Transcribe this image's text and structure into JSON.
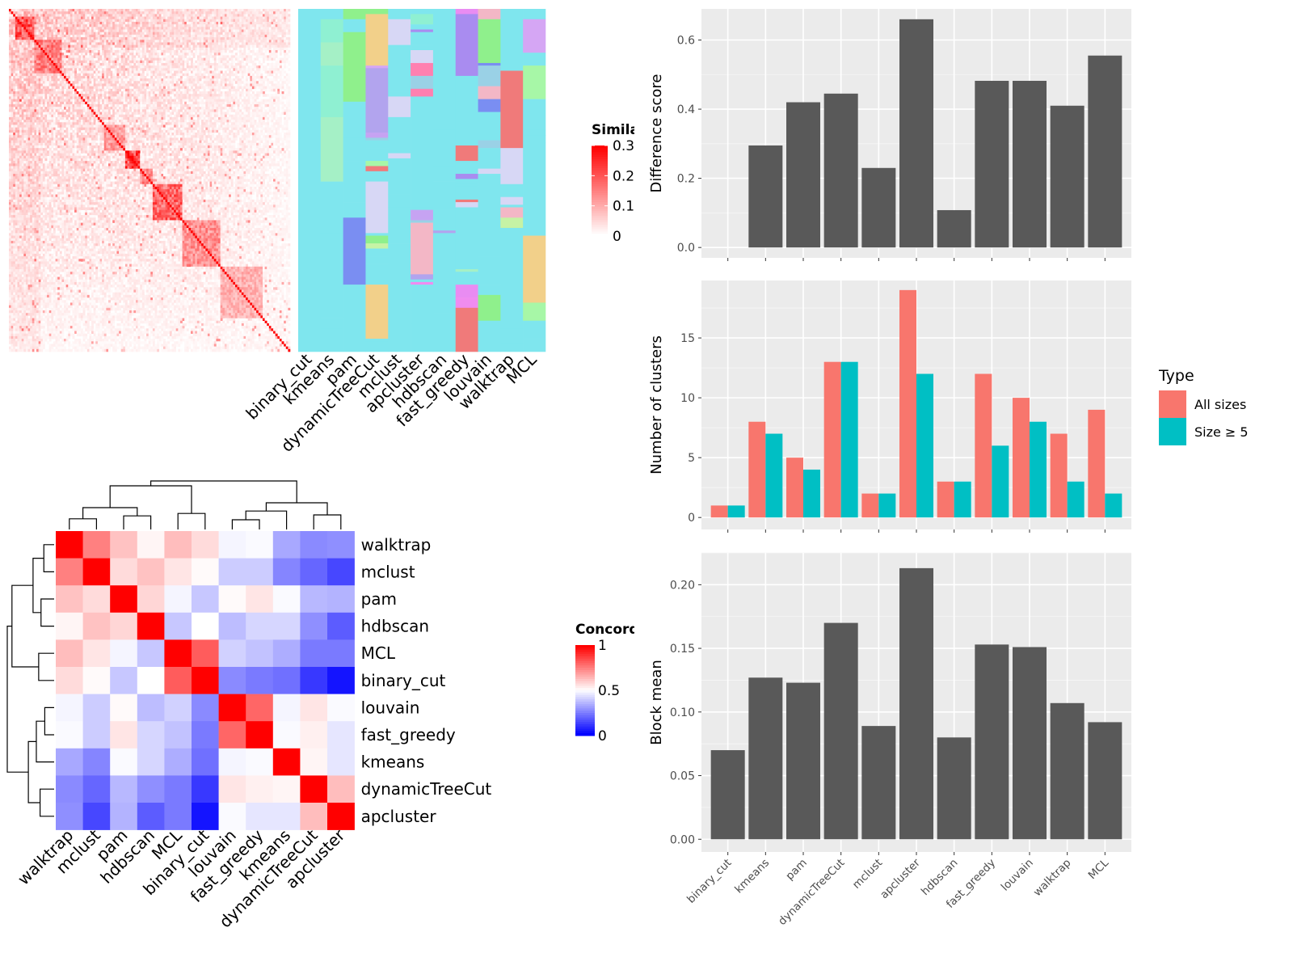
{
  "chart_data": [
    {
      "type": "heatmap",
      "panel": "similarity-heatmap",
      "legend": {
        "title": "Similarity",
        "ticks": [
          0,
          0.1,
          0.2,
          0.3
        ],
        "colors": [
          "#ffffff",
          "#ff0000"
        ]
      },
      "n_terms": 133,
      "color_scale": [
        0,
        0.3
      ],
      "diagonal_blocks": [
        {
          "start": 3,
          "end": 12,
          "value": 0.2
        },
        {
          "start": 12,
          "end": 25,
          "value": 0.15
        },
        {
          "start": 45,
          "end": 55,
          "value": 0.12
        },
        {
          "start": 55,
          "end": 62,
          "value": 0.22
        },
        {
          "start": 62,
          "end": 68,
          "value": 0.14
        },
        {
          "start": 68,
          "end": 82,
          "value": 0.18
        },
        {
          "start": 82,
          "end": 100,
          "value": 0.13
        },
        {
          "start": 100,
          "end": 120,
          "value": 0.09
        }
      ]
    },
    {
      "type": "heatmap",
      "panel": "cluster-assignments",
      "methods": [
        "binary_cut",
        "kmeans",
        "pam",
        "dynamicTreeCut",
        "mclust",
        "apcluster",
        "hdbscan",
        "fast_greedy",
        "louvain",
        "walktrap",
        "MCL"
      ],
      "n_terms": 133,
      "cluster_counts": [
        1,
        8,
        5,
        13,
        2,
        19,
        3,
        12,
        10,
        7,
        9
      ],
      "palette": [
        "#7fe6ee",
        "#b2a4ee",
        "#c6a3f2",
        "#a98cf0",
        "#e98cf2",
        "#a5f0c6",
        "#8ff0d2",
        "#7a8ef2",
        "#f08cf0",
        "#f3b7c6",
        "#8ff08c",
        "#c6f3a5",
        "#f07a7a",
        "#d7d7f5",
        "#9ad1e6",
        "#f2d08a",
        "#d5a6f4",
        "#a7f7a7",
        "#ff80b0"
      ]
    },
    {
      "type": "heatmap",
      "panel": "concordance-heatmap",
      "legend": {
        "title": "Concordance",
        "ticks": [
          0,
          0.5,
          1
        ],
        "colors": [
          "#0000ff",
          "#ffffff",
          "#ff0000"
        ]
      },
      "labels": [
        "walktrap",
        "mclust",
        "pam",
        "hdbscan",
        "MCL",
        "binary_cut",
        "louvain",
        "fast_greedy",
        "kmeans",
        "dynamicTreeCut",
        "apcluster"
      ],
      "values": [
        [
          1.0,
          0.75,
          0.62,
          0.52,
          0.63,
          0.57,
          0.48,
          0.49,
          0.33,
          0.27,
          0.28
        ],
        [
          0.75,
          1.0,
          0.57,
          0.62,
          0.55,
          0.51,
          0.4,
          0.4,
          0.26,
          0.2,
          0.14
        ],
        [
          0.62,
          0.57,
          1.0,
          0.58,
          0.48,
          0.39,
          0.51,
          0.55,
          0.49,
          0.36,
          0.35
        ],
        [
          0.52,
          0.62,
          0.58,
          1.0,
          0.39,
          0.5,
          0.37,
          0.42,
          0.42,
          0.28,
          0.18
        ],
        [
          0.63,
          0.55,
          0.48,
          0.39,
          1.0,
          0.82,
          0.41,
          0.38,
          0.34,
          0.24,
          0.24
        ],
        [
          0.57,
          0.51,
          0.39,
          0.5,
          0.82,
          1.0,
          0.27,
          0.24,
          0.22,
          0.11,
          0.04
        ],
        [
          0.48,
          0.4,
          0.51,
          0.37,
          0.41,
          0.27,
          1.0,
          0.8,
          0.48,
          0.55,
          0.49
        ],
        [
          0.49,
          0.4,
          0.55,
          0.42,
          0.38,
          0.24,
          0.8,
          1.0,
          0.49,
          0.53,
          0.45
        ],
        [
          0.33,
          0.26,
          0.49,
          0.42,
          0.34,
          0.22,
          0.48,
          0.49,
          1.0,
          0.52,
          0.45
        ],
        [
          0.27,
          0.2,
          0.36,
          0.28,
          0.24,
          0.11,
          0.55,
          0.53,
          0.52,
          1.0,
          0.63
        ],
        [
          0.28,
          0.14,
          0.35,
          0.18,
          0.24,
          0.04,
          0.49,
          0.45,
          0.45,
          0.63,
          1.0
        ]
      ]
    },
    {
      "type": "bar",
      "panel": "difference-score",
      "ylabel": "Difference score",
      "categories": [
        "binary_cut",
        "kmeans",
        "pam",
        "dynamicTreeCut",
        "mclust",
        "apcluster",
        "hdbscan",
        "fast_greedy",
        "louvain",
        "walktrap",
        "MCL"
      ],
      "values": [
        0,
        0.295,
        0.42,
        0.445,
        0.23,
        0.66,
        0.108,
        0.482,
        0.482,
        0.41,
        0.555
      ],
      "ylim": [
        -0.03,
        0.69
      ],
      "yticks": [
        0.0,
        0.2,
        0.4,
        0.6
      ],
      "ytick_labels": [
        "0.0",
        "0.2",
        "0.4",
        "0.6"
      ],
      "bar_color": "#595959"
    },
    {
      "type": "bar",
      "panel": "number-of-clusters",
      "ylabel": "Number of clusters",
      "categories": [
        "binary_cut",
        "kmeans",
        "pam",
        "dynamicTreeCut",
        "mclust",
        "apcluster",
        "hdbscan",
        "fast_greedy",
        "louvain",
        "walktrap",
        "MCL"
      ],
      "series": [
        {
          "name": "All sizes",
          "color": "#f8766d",
          "values": [
            1,
            8,
            5,
            13,
            2,
            19,
            3,
            12,
            10,
            7,
            9
          ]
        },
        {
          "name": "Size ≥ 5",
          "color": "#00bfc4",
          "values": [
            1,
            7,
            4,
            13,
            2,
            12,
            3,
            6,
            8,
            3,
            2
          ]
        }
      ],
      "ylim": [
        -1,
        19.8
      ],
      "yticks": [
        0,
        5,
        10,
        15
      ],
      "ytick_labels": [
        "0",
        "5",
        "10",
        "15"
      ],
      "legend": {
        "title": "Type",
        "position": "right"
      }
    },
    {
      "type": "bar",
      "panel": "block-mean",
      "ylabel": "Block mean",
      "categories": [
        "binary_cut",
        "kmeans",
        "pam",
        "dynamicTreeCut",
        "mclust",
        "apcluster",
        "hdbscan",
        "fast_greedy",
        "louvain",
        "walktrap",
        "MCL"
      ],
      "values": [
        0.07,
        0.127,
        0.123,
        0.17,
        0.089,
        0.213,
        0.08,
        0.153,
        0.151,
        0.107,
        0.092
      ],
      "ylim": [
        -0.01,
        0.225
      ],
      "yticks": [
        0.0,
        0.05,
        0.1,
        0.15,
        0.2
      ],
      "ytick_labels": [
        "0.00",
        "0.05",
        "0.10",
        "0.15",
        "0.20"
      ],
      "bar_color": "#595959"
    }
  ]
}
